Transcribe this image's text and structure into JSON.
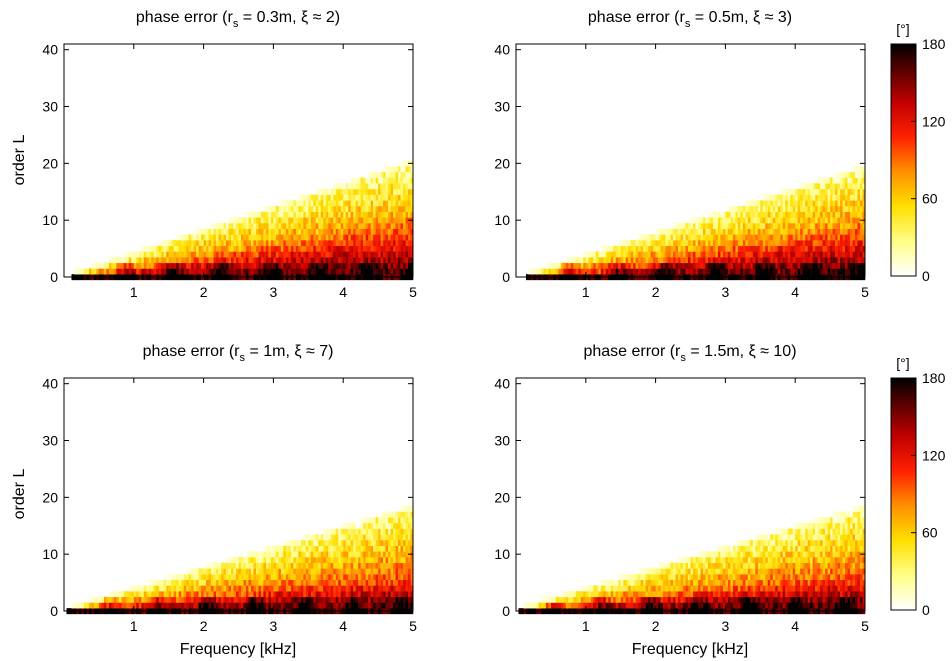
{
  "colormap": {
    "name": "hot (reversed)",
    "stops": [
      "#ffffff",
      "#ffff80",
      "#ffe000",
      "#ff9000",
      "#ff2000",
      "#c00000",
      "#600000",
      "#000000"
    ]
  },
  "chart_data": [
    {
      "type": "heatmap",
      "title_pre": "phase error (r",
      "title_sub": "s",
      "title_post": " = 0.3m, ξ ≈ 2)",
      "xlabel": "",
      "ylabel": "order L",
      "xlim": [
        0,
        5
      ],
      "ylim": [
        0,
        41
      ],
      "xticks": [
        "1",
        "2",
        "3",
        "4",
        "5"
      ],
      "yticks": [
        "0",
        "10",
        "20",
        "30",
        "40"
      ],
      "band": {
        "onset_khz": 0.1,
        "top_order_at_5khz": 20,
        "dark_onset_khz": 0.35,
        "dark_top_at_5khz": 11
      }
    },
    {
      "type": "heatmap",
      "title_pre": "phase error (r",
      "title_sub": "s",
      "title_post": " = 0.5m, ξ ≈ 3)",
      "xlabel": "",
      "ylabel": "",
      "xlim": [
        0,
        5
      ],
      "ylim": [
        0,
        41
      ],
      "xticks": [
        "1",
        "2",
        "3",
        "4",
        "5"
      ],
      "yticks": [
        "0",
        "10",
        "20",
        "30",
        "40"
      ],
      "band": {
        "onset_khz": 0.15,
        "top_order_at_5khz": 19,
        "dark_onset_khz": 0.8,
        "dark_top_at_5khz": 11
      }
    },
    {
      "type": "heatmap",
      "title_pre": "phase error (r",
      "title_sub": "s",
      "title_post": " = 1m, ξ ≈ 7)",
      "xlabel": "Frequency [kHz]",
      "ylabel": "order L",
      "xlim": [
        0,
        5
      ],
      "ylim": [
        0,
        41
      ],
      "xticks": [
        "1",
        "2",
        "3",
        "4",
        "5"
      ],
      "yticks": [
        "0",
        "10",
        "20",
        "30",
        "40"
      ],
      "band": {
        "onset_khz": 0.05,
        "top_order_at_5khz": 18,
        "dark_onset_khz": 0.05,
        "dark_top_at_5khz": 7
      }
    },
    {
      "type": "heatmap",
      "title_pre": "phase error (r",
      "title_sub": "s",
      "title_post": " = 1.5m, ξ ≈ 10)",
      "xlabel": "Frequency [kHz]",
      "ylabel": "",
      "xlim": [
        0,
        5
      ],
      "ylim": [
        0,
        41
      ],
      "xticks": [
        "1",
        "2",
        "3",
        "4",
        "5"
      ],
      "yticks": [
        "0",
        "10",
        "20",
        "30",
        "40"
      ],
      "band": {
        "onset_khz": 0.05,
        "top_order_at_5khz": 18,
        "dark_onset_khz": 0.05,
        "dark_top_at_5khz": 7
      }
    }
  ],
  "colorbars": [
    {
      "unit_label": "[°]",
      "ticks": [
        "0",
        "60",
        "120",
        "180"
      ],
      "range": [
        0,
        180
      ]
    },
    {
      "unit_label": "[°]",
      "ticks": [
        "0",
        "60",
        "120",
        "180"
      ],
      "range": [
        0,
        180
      ]
    }
  ]
}
